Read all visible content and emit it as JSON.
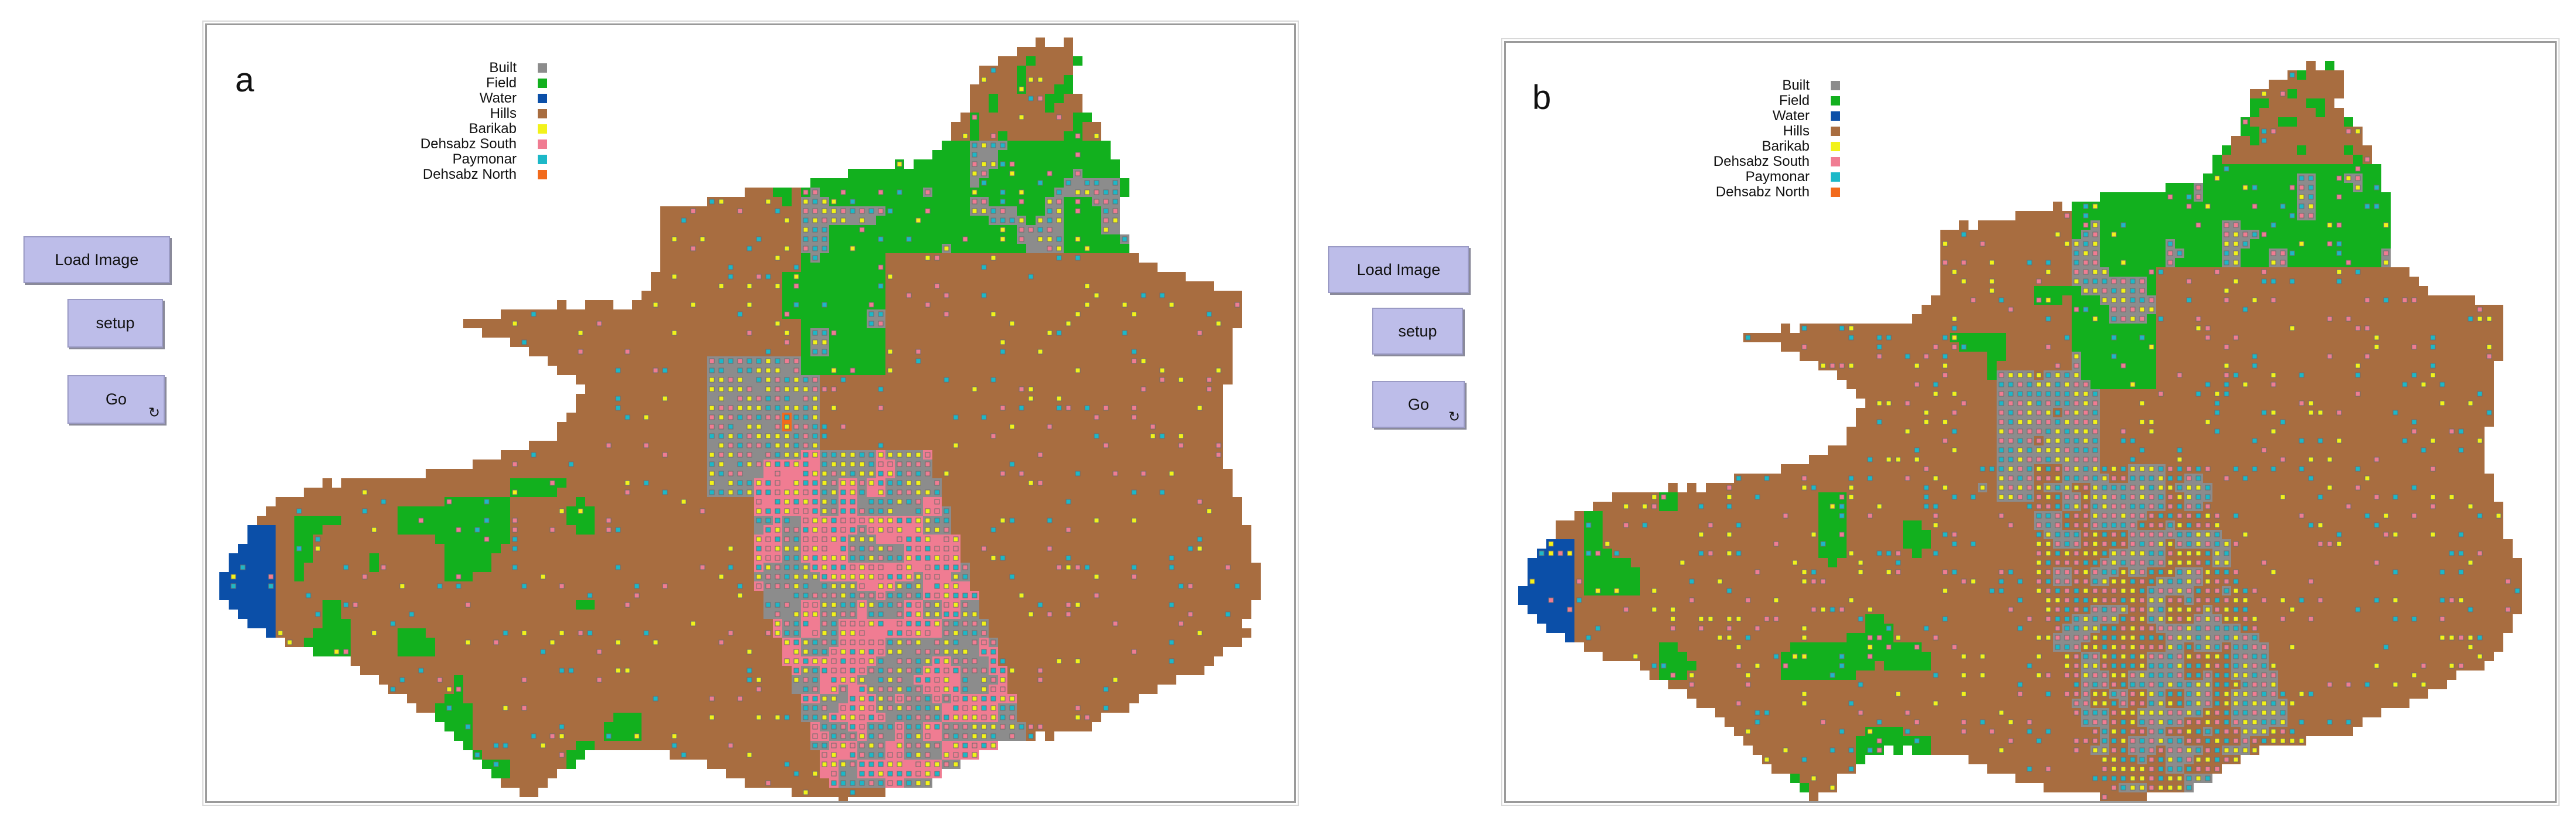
{
  "panels": [
    {
      "letter": "a",
      "mode": "classified"
    },
    {
      "letter": "b",
      "mode": "mixed"
    }
  ],
  "buttons": {
    "load_image": "Load Image",
    "setup": "setup",
    "go": "Go",
    "go_icon": "forever-loop-icon"
  },
  "legend": [
    {
      "label": "Built",
      "color": "#8c8c8c"
    },
    {
      "label": "Field",
      "color": "#12b01e"
    },
    {
      "label": "Water",
      "color": "#0b4fa8"
    },
    {
      "label": "Hills",
      "color": "#a86d40"
    },
    {
      "label": "Barikab",
      "color": "#f2f21a"
    },
    {
      "label": "Dehsabz South",
      "color": "#f07c92"
    },
    {
      "label": "Paymonar",
      "color": "#1cb8c8"
    },
    {
      "label": "Dehsabz North",
      "color": "#f26a1c"
    }
  ]
}
